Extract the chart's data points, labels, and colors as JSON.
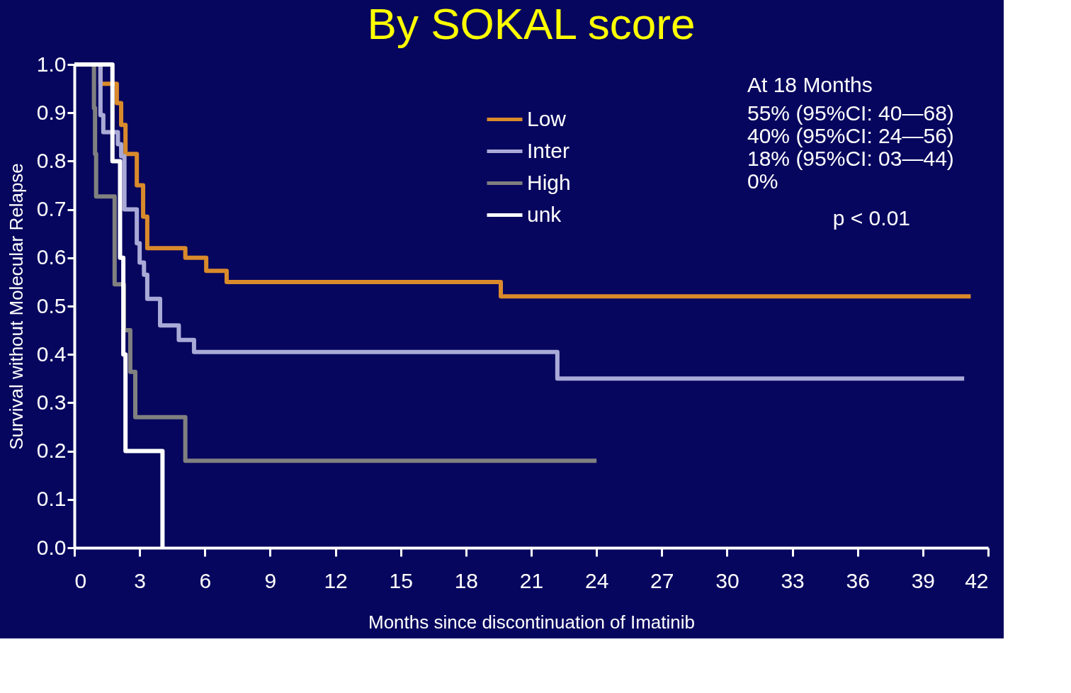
{
  "chart_data": {
    "type": "step",
    "title": "By SOKAL score",
    "xlabel": "Months since discontinuation of Imatinib",
    "ylabel": "Survival without Molecular Relapse",
    "series": [
      {
        "name": "Low",
        "color": "#d98a2b",
        "x": [
          0,
          1.2,
          1.95,
          2.15,
          2.35,
          2.87,
          3.16,
          3.35,
          5.1,
          6.06,
          7.0,
          19.6,
          41.2
        ],
        "values": [
          1.0,
          0.96,
          0.92,
          0.875,
          0.815,
          0.75,
          0.685,
          0.62,
          0.6,
          0.573,
          0.55,
          0.52,
          0.52
        ]
      },
      {
        "name": "Inter",
        "color": "#aaaad8",
        "x": [
          0,
          1.2,
          1.33,
          2.0,
          2.15,
          2.3,
          2.87,
          3.0,
          3.2,
          3.35,
          3.94,
          4.8,
          5.5,
          22.2,
          40.9
        ],
        "values": [
          1.0,
          0.895,
          0.86,
          0.835,
          0.81,
          0.7,
          0.63,
          0.59,
          0.565,
          0.515,
          0.46,
          0.43,
          0.405,
          0.35,
          0.35
        ]
      },
      {
        "name": "High",
        "color": "#808080",
        "x": [
          0,
          0.9,
          0.95,
          1.0,
          1.85,
          2.28,
          2.57,
          2.8,
          5.1,
          24.0
        ],
        "values": [
          1.0,
          0.91,
          0.815,
          0.727,
          0.545,
          0.45,
          0.364,
          0.27,
          0.18,
          0.18
        ]
      },
      {
        "name": "unk",
        "color": "#ffffff",
        "x": [
          0,
          1.75,
          2.1,
          2.25,
          2.35,
          4.05
        ],
        "values": [
          1.0,
          0.8,
          0.6,
          0.4,
          0.2,
          0.0
        ]
      }
    ],
    "xlim": [
      0,
      42
    ],
    "xticks": [
      0,
      3,
      6,
      9,
      12,
      15,
      18,
      21,
      24,
      27,
      30,
      33,
      36,
      39,
      42
    ],
    "ylim": [
      0,
      1
    ],
    "yticks": [
      {
        "value": 0,
        "label": "0.0"
      },
      0.1,
      0.2,
      0.3,
      0.4,
      0.5,
      0.6,
      0.7,
      0.8,
      0.9,
      {
        "value": 1,
        "label": "1.0"
      }
    ],
    "grid": false,
    "legend": "top right",
    "marker": "none",
    "line_style": "solid",
    "annotations": [
      "At 18 Months",
      "55% (95%CI: 40—68)",
      "40% (95%CI: 24—56)",
      "18% (95%CI: 03—44)",
      "0%",
      "p < 0.01"
    ]
  }
}
